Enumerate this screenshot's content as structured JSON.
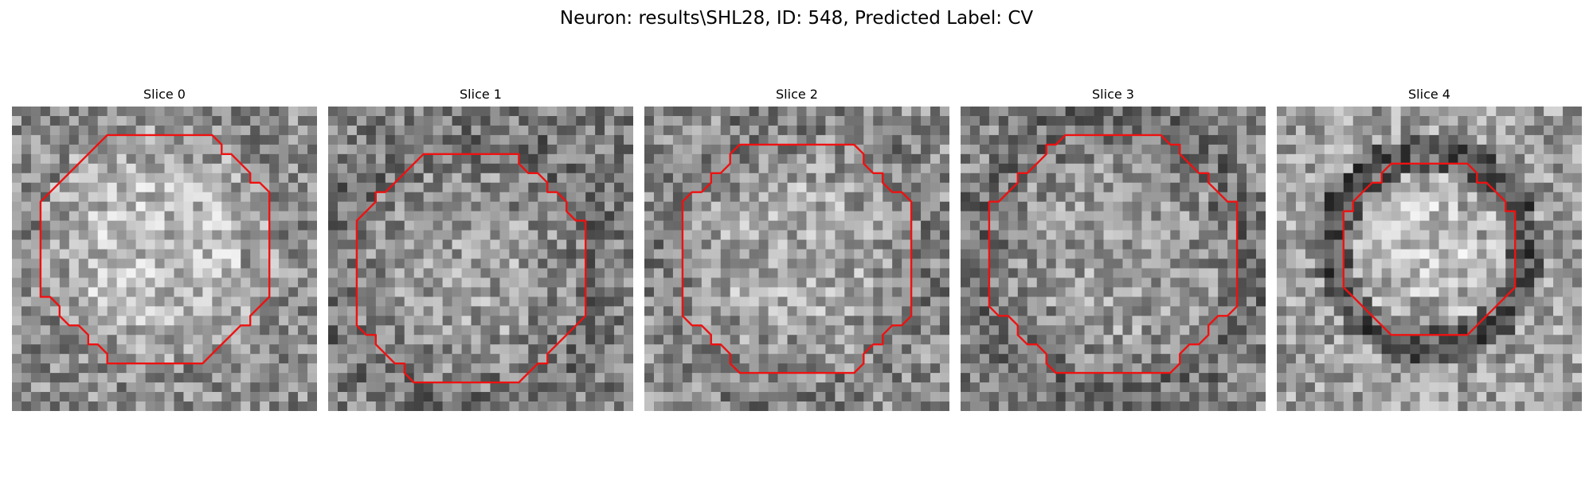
{
  "figure": {
    "title": "Neuron: results\\SHL28, ID: 548, Predicted Label: CV"
  },
  "panels": [
    {
      "title": "Slice 0"
    },
    {
      "title": "Slice 1"
    },
    {
      "title": "Slice 2"
    },
    {
      "title": "Slice 3"
    },
    {
      "title": "Slice 4"
    }
  ],
  "colors": {
    "contour": "#ee1111",
    "colormap": "gray"
  }
}
